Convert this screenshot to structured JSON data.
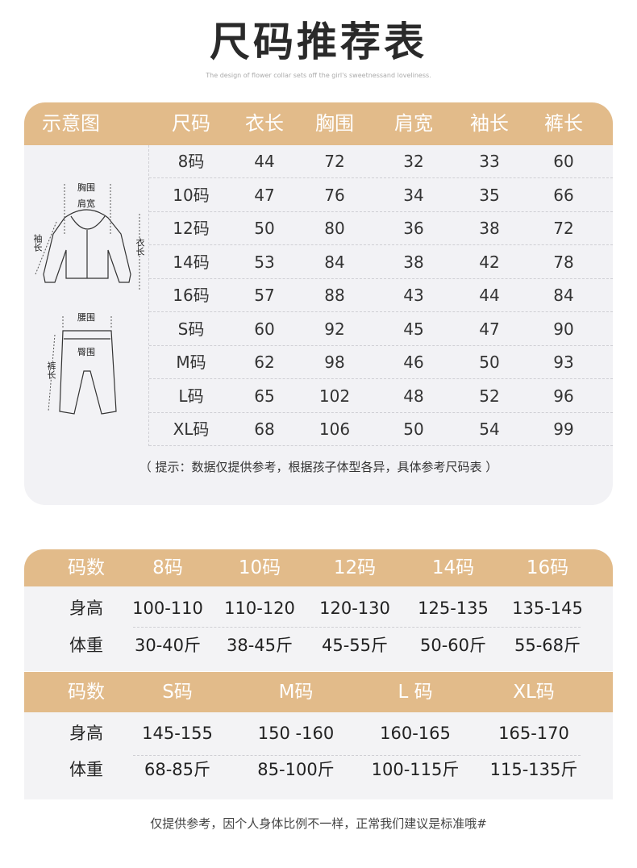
{
  "header": {
    "title": "尺码推荐表",
    "subtitle": "The design of flower collar sets off the girl's sweetnessand loveliness."
  },
  "size_table": {
    "columns": [
      "示意图",
      "尺码",
      "衣长",
      "胸围",
      "肩宽",
      "袖长",
      "裤长"
    ],
    "diagram_labels": {
      "chest": "胸围",
      "shoulder": "肩宽",
      "sleeve": "袖长",
      "length": "衣长",
      "waist": "腰围",
      "hip": "臀围",
      "pants_length": "裤长"
    },
    "rows": [
      [
        "8码",
        "44",
        "72",
        "32",
        "33",
        "60"
      ],
      [
        "10码",
        "47",
        "76",
        "34",
        "35",
        "66"
      ],
      [
        "12码",
        "50",
        "80",
        "36",
        "38",
        "72"
      ],
      [
        "14码",
        "53",
        "84",
        "38",
        "42",
        "78"
      ],
      [
        "16码",
        "57",
        "88",
        "43",
        "44",
        "84"
      ],
      [
        "S码",
        "60",
        "92",
        "45",
        "47",
        "90"
      ],
      [
        "M码",
        "62",
        "98",
        "46",
        "50",
        "93"
      ],
      [
        "L码",
        "65",
        "102",
        "48",
        "52",
        "96"
      ],
      [
        "XL码",
        "68",
        "106",
        "50",
        "54",
        "99"
      ]
    ],
    "note": "（ 提示：数据仅提供参考，根据孩子体型各异，具体参考尺码表 ）"
  },
  "fit_table_1": {
    "header": [
      "码数",
      "8码",
      "10码",
      "12码",
      "14码",
      "16码"
    ],
    "height": [
      "身高",
      "100-110",
      "110-120",
      "120-130",
      "125-135",
      "135-145"
    ],
    "weight": [
      "体重",
      "30-40斤",
      "38-45斤",
      "45-55斤",
      "50-60斤",
      "55-68斤"
    ]
  },
  "fit_table_2": {
    "header": [
      "码数",
      "S码",
      "M码",
      "L 码",
      "XL码"
    ],
    "height": [
      "身高",
      "145-155",
      "150 -160",
      "160-165",
      "165-170"
    ],
    "weight": [
      "体重",
      "68-85斤",
      "85-100斤",
      "100-115斤",
      "115-135斤"
    ]
  },
  "footer": "仅提供参考，因个人身体比例不一样，正常我们建议是标准哦#",
  "colors": {
    "header_bg": "#e2bb8a",
    "panel_bg": "#f2f2f5"
  }
}
